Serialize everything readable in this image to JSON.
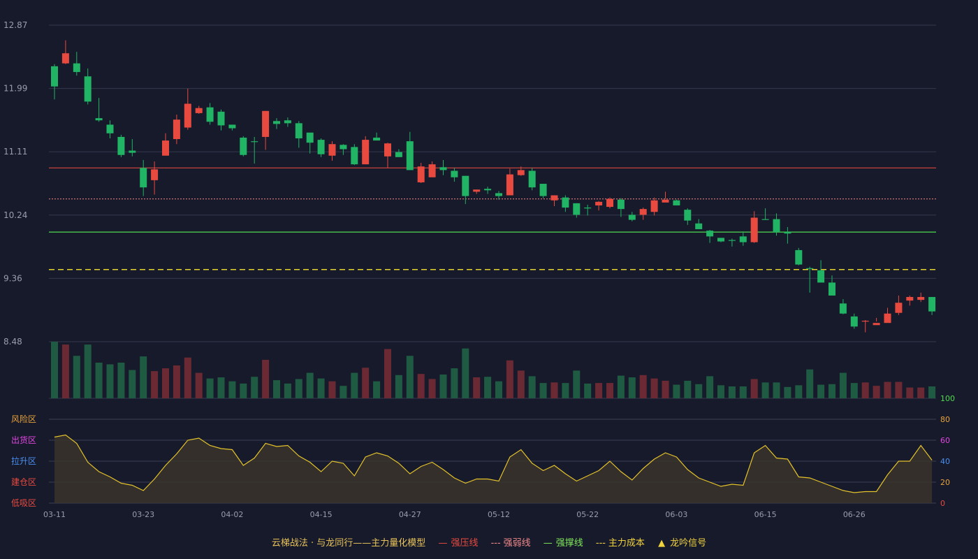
{
  "chart_data": {
    "type": "candlestick",
    "price_axis": {
      "ticks": [
        "12.87",
        "11.99",
        "11.11",
        "10.24",
        "9.36",
        "8.48"
      ],
      "min": 8.48,
      "max": 12.87
    },
    "x_ticks": [
      "03-11",
      "03-23",
      "04-02",
      "04-15",
      "04-27",
      "05-12",
      "05-22",
      "06-03",
      "06-15",
      "06-26"
    ],
    "x_tick_index": [
      0,
      8,
      16,
      24,
      32,
      40,
      48,
      56,
      64,
      72
    ],
    "candles": [
      [
        12.3,
        12.02,
        12.33,
        11.84
      ],
      [
        12.34,
        12.48,
        12.66,
        12.33
      ],
      [
        12.34,
        12.22,
        12.5,
        12.17
      ],
      [
        12.16,
        11.81,
        12.27,
        11.77
      ],
      [
        11.58,
        11.55,
        11.86,
        11.53
      ],
      [
        11.49,
        11.37,
        11.55,
        11.3
      ],
      [
        11.32,
        11.07,
        11.35,
        11.04
      ],
      [
        11.13,
        11.1,
        11.29,
        11.05
      ],
      [
        10.89,
        10.62,
        11.0,
        10.5
      ],
      [
        10.72,
        10.87,
        10.98,
        10.52
      ],
      [
        11.06,
        11.27,
        11.37,
        11.11
      ],
      [
        11.29,
        11.56,
        11.63,
        11.22
      ],
      [
        11.45,
        11.78,
        11.99,
        11.42
      ],
      [
        11.65,
        11.72,
        11.75,
        11.64
      ],
      [
        11.73,
        11.53,
        11.79,
        11.49
      ],
      [
        11.67,
        11.48,
        11.7,
        11.41
      ],
      [
        11.49,
        11.44,
        11.48,
        11.41
      ],
      [
        11.31,
        11.07,
        11.33,
        11.05
      ],
      [
        11.26,
        11.25,
        11.32,
        10.95
      ],
      [
        11.32,
        11.68,
        11.68,
        11.14
      ],
      [
        11.54,
        11.5,
        11.58,
        11.43
      ],
      [
        11.55,
        11.51,
        11.59,
        11.46
      ],
      [
        11.51,
        11.3,
        11.54,
        11.17
      ],
      [
        11.38,
        11.24,
        11.37,
        11.09
      ],
      [
        11.28,
        11.08,
        11.3,
        11.04
      ],
      [
        11.06,
        11.22,
        11.26,
        10.99
      ],
      [
        11.21,
        11.15,
        11.22,
        11.07
      ],
      [
        11.18,
        10.94,
        11.22,
        10.93
      ],
      [
        10.94,
        11.28,
        11.33,
        10.94
      ],
      [
        11.31,
        11.27,
        11.38,
        11.28
      ],
      [
        11.05,
        11.23,
        11.24,
        10.89
      ],
      [
        11.11,
        11.04,
        11.15,
        11.08
      ],
      [
        11.26,
        10.86,
        11.39,
        10.86
      ],
      [
        10.69,
        10.91,
        10.96,
        10.68
      ],
      [
        10.76,
        10.94,
        10.98,
        10.78
      ],
      [
        10.9,
        10.86,
        11.0,
        10.79
      ],
      [
        10.85,
        10.76,
        10.89,
        10.7
      ],
      [
        10.78,
        10.5,
        10.78,
        10.39
      ],
      [
        10.56,
        10.59,
        10.59,
        10.53
      ],
      [
        10.6,
        10.58,
        10.63,
        10.53
      ],
      [
        10.54,
        10.5,
        10.57,
        10.45
      ],
      [
        10.51,
        10.8,
        10.88,
        10.51
      ],
      [
        10.79,
        10.86,
        10.91,
        10.78
      ],
      [
        10.85,
        10.62,
        10.89,
        10.58
      ],
      [
        10.67,
        10.5,
        10.67,
        10.47
      ],
      [
        10.44,
        10.51,
        10.51,
        10.36
      ],
      [
        10.48,
        10.34,
        10.51,
        10.28
      ],
      [
        10.4,
        10.24,
        10.4,
        10.2
      ],
      [
        10.34,
        10.33,
        10.38,
        10.23
      ],
      [
        10.37,
        10.42,
        10.43,
        10.3
      ],
      [
        10.35,
        10.46,
        10.48,
        10.33
      ],
      [
        10.45,
        10.32,
        10.47,
        10.21
      ],
      [
        10.24,
        10.17,
        10.28,
        10.15
      ],
      [
        10.24,
        10.32,
        10.34,
        10.17
      ],
      [
        10.28,
        10.44,
        10.48,
        10.23
      ],
      [
        10.41,
        10.45,
        10.56,
        10.46
      ],
      [
        10.44,
        10.37,
        10.45,
        10.39
      ],
      [
        10.31,
        10.16,
        10.33,
        10.1
      ],
      [
        10.12,
        10.04,
        10.18,
        10.04
      ],
      [
        10.02,
        9.94,
        10.03,
        9.85
      ],
      [
        9.92,
        9.87,
        9.92,
        9.86
      ],
      [
        9.89,
        9.88,
        9.91,
        9.8
      ],
      [
        9.94,
        9.86,
        10.01,
        9.81
      ],
      [
        9.86,
        10.2,
        10.29,
        9.85
      ],
      [
        10.18,
        10.17,
        10.33,
        10.18
      ],
      [
        10.18,
        10.0,
        10.26,
        9.95
      ],
      [
        10.0,
        9.98,
        10.07,
        9.84
      ],
      [
        9.75,
        9.55,
        9.78,
        9.54
      ],
      [
        9.5,
        9.49,
        9.52,
        9.16
      ],
      [
        9.47,
        9.3,
        9.61,
        9.31
      ],
      [
        9.3,
        9.12,
        9.4,
        9.15
      ],
      [
        9.01,
        8.87,
        9.07,
        8.86
      ],
      [
        8.83,
        8.69,
        8.87,
        8.66
      ],
      [
        8.77,
        8.77,
        8.78,
        8.61
      ],
      [
        8.71,
        8.74,
        8.81,
        8.76
      ],
      [
        8.74,
        8.87,
        8.95,
        8.83
      ],
      [
        8.88,
        9.02,
        9.12,
        8.85
      ],
      [
        9.05,
        9.1,
        9.12,
        8.98
      ],
      [
        9.06,
        9.1,
        9.16,
        9.03
      ],
      [
        9.1,
        8.9,
        9.09,
        8.85
      ]
    ],
    "volume_ratio": [
      1.0,
      0.95,
      0.75,
      0.95,
      0.63,
      0.6,
      0.63,
      0.5,
      0.74,
      0.48,
      0.53,
      0.58,
      0.72,
      0.45,
      0.35,
      0.37,
      0.3,
      0.26,
      0.38,
      0.68,
      0.32,
      0.26,
      0.34,
      0.45,
      0.35,
      0.3,
      0.22,
      0.45,
      0.54,
      0.3,
      0.87,
      0.41,
      0.75,
      0.43,
      0.34,
      0.42,
      0.53,
      0.88,
      0.37,
      0.38,
      0.3,
      0.67,
      0.49,
      0.39,
      0.27,
      0.28,
      0.27,
      0.49,
      0.26,
      0.27,
      0.27,
      0.4,
      0.37,
      0.41,
      0.35,
      0.31,
      0.24,
      0.31,
      0.25,
      0.39,
      0.23,
      0.21,
      0.21,
      0.34,
      0.28,
      0.28,
      0.2,
      0.23,
      0.51,
      0.24,
      0.25,
      0.45,
      0.27,
      0.28,
      0.22,
      0.29,
      0.29,
      0.19,
      0.19,
      0.21
    ],
    "oscillator": {
      "axis_ticks": [
        "100",
        "80",
        "60",
        "40",
        "20",
        "0"
      ],
      "zone_labels": [
        "风险区",
        "出货区",
        "拉升区",
        "建仓区",
        "低吸区"
      ],
      "values": [
        63,
        65,
        57,
        39,
        30,
        25,
        19,
        17,
        12,
        23,
        36,
        47,
        60,
        62,
        55,
        52,
        51,
        36,
        43,
        57,
        54,
        55,
        45,
        39,
        30,
        40,
        38,
        26,
        44,
        48,
        45,
        38,
        28,
        35,
        39,
        32,
        24,
        19,
        23,
        23,
        21,
        44,
        51,
        38,
        31,
        36,
        28,
        21,
        26,
        31,
        40,
        30,
        22,
        33,
        42,
        48,
        44,
        32,
        24,
        20,
        16,
        18,
        17,
        48,
        55,
        43,
        42,
        25,
        24,
        20,
        16,
        12,
        10,
        11,
        11,
        27,
        40,
        40,
        55,
        41
      ]
    },
    "lines": [
      {
        "name": "强压线",
        "value": 10.89,
        "color": "#d9463d",
        "style": "solid"
      },
      {
        "name": "强弱线",
        "value": 10.46,
        "color": "#e07a7a",
        "style": "dotted"
      },
      {
        "name": "强撑线",
        "value": 10.0,
        "color": "#4fdb4f",
        "style": "solid"
      },
      {
        "name": "主力成本",
        "value": 9.48,
        "color": "#e3d22b",
        "style": "dashed"
      }
    ],
    "up_color": "#e84a3f",
    "down_color": "#20b464"
  },
  "legend": {
    "title": "云梯战法 · 与龙同行——主力量化模型",
    "items": [
      {
        "label": "强压线",
        "color": "#e84a3f",
        "mark": "—"
      },
      {
        "label": "强弱线",
        "color": "#f08a8a",
        "mark": "---"
      },
      {
        "label": "强撑线",
        "color": "#7fe85a",
        "mark": "—"
      },
      {
        "label": "主力成本",
        "color": "#f0d23c",
        "mark": "---"
      },
      {
        "label": "龙吟信号",
        "color": "#f0d23c",
        "mark": "▲"
      }
    ]
  }
}
